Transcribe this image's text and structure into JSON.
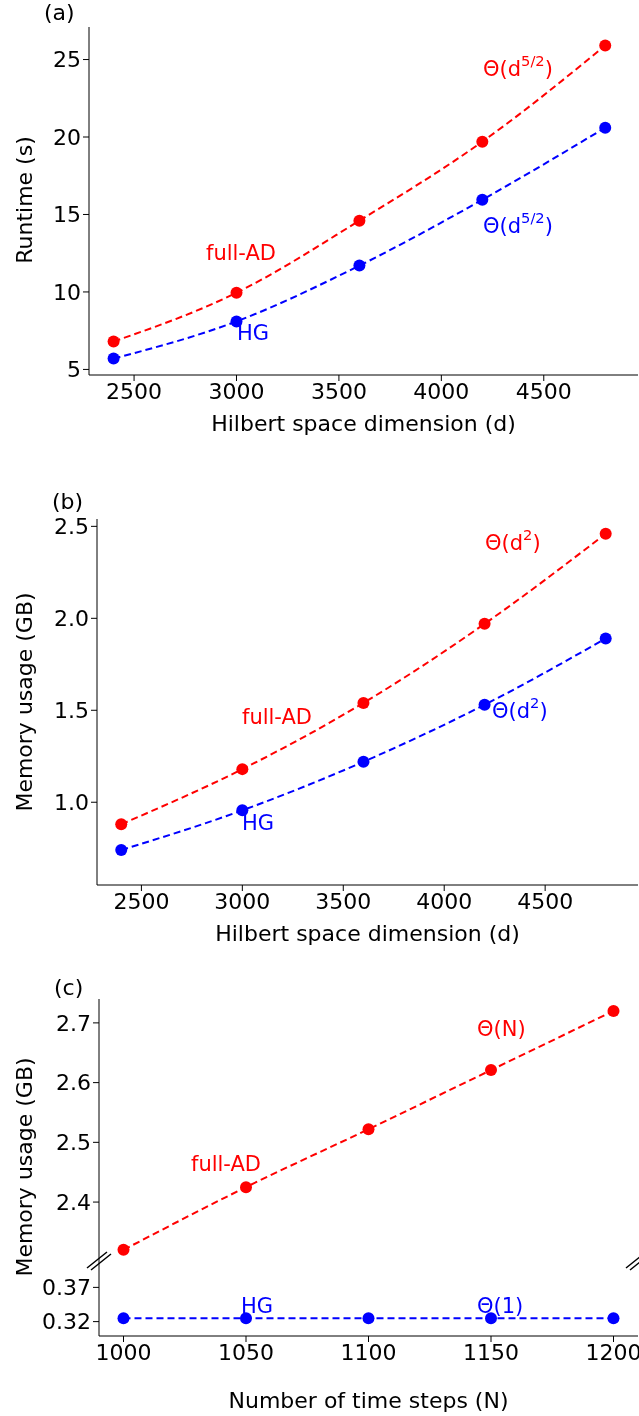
{
  "chart_data": [
    {
      "type": "line",
      "title": "(a)",
      "xlabel": "Hilbert space dimension (d)",
      "ylabel": "Runtime (s)",
      "x": [
        2400,
        3000,
        3600,
        4200,
        4800
      ],
      "xlim": [
        2280,
        4960
      ],
      "xticks": [
        2500,
        3000,
        3500,
        4000,
        4500
      ],
      "ylim": [
        4.64,
        27.1
      ],
      "yticks": [
        5,
        10,
        15,
        20,
        25
      ],
      "marker": "circle",
      "line_style": "dashed",
      "series": [
        {
          "name": "full-AD",
          "color": "#ff0000",
          "values": [
            6.8,
            9.95,
            14.6,
            19.7,
            25.9
          ]
        },
        {
          "name": "HG",
          "color": "#0000ff",
          "values": [
            5.7,
            8.1,
            11.7,
            15.95,
            20.6
          ]
        }
      ],
      "annotations": [
        "Θ(d$^{5/2}$)",
        "Θ(d$^{5/2}$)"
      ]
    },
    {
      "type": "line",
      "title": "(b)",
      "xlabel": "Hilbert space dimension (d)",
      "ylabel": "Memory usage (GB)",
      "x": [
        2400,
        3000,
        3600,
        4200,
        4800
      ],
      "xlim": [
        2280,
        4960
      ],
      "xticks": [
        2500,
        3000,
        3500,
        4000,
        4500
      ],
      "ylim": [
        0.55,
        2.54
      ],
      "yticks": [
        {
          "value": 1,
          "label": "1.0"
        },
        1.5,
        {
          "value": 2,
          "label": "2.0"
        },
        2.5
      ],
      "marker": "circle",
      "line_style": "dashed",
      "series": [
        {
          "name": "full-AD",
          "color": "#ff0000",
          "values": [
            0.88,
            1.18,
            1.54,
            1.97,
            2.46
          ]
        },
        {
          "name": "HG",
          "color": "#0000ff",
          "values": [
            0.74,
            0.956,
            1.22,
            1.53,
            1.89
          ]
        }
      ],
      "annotations": [
        "Θ(d$^{2}$)",
        "Θ(d$^{2}$)"
      ]
    },
    {
      "type": "line",
      "title": "(c)",
      "ylabel": "Memory usage (GB)",
      "x": [
        1000,
        1050,
        1100,
        1150,
        1200
      ],
      "xlim": [
        990,
        1210
      ],
      "ylim": [
        2.303,
        2.74
      ],
      "yticks": [
        2.4,
        2.5,
        2.6,
        2.7
      ],
      "tick_labels": "y",
      "marker": "circle",
      "line_style": "dashed",
      "series": [
        {
          "name": "full-AD",
          "color": "#ff0000",
          "values": [
            2.32,
            2.425,
            2.522,
            2.621,
            2.72
          ]
        }
      ],
      "annotations": [
        "Θ(N)"
      ]
    },
    {
      "type": "line",
      "xlabel": "Number of time steps (N)",
      "x": [
        1000,
        1050,
        1100,
        1150,
        1200
      ],
      "xlim": [
        990,
        1210
      ],
      "xticks": [
        1000,
        1050,
        1100,
        1150,
        1200
      ],
      "ylim": [
        0.299,
        0.41
      ],
      "yticks": [
        0.32,
        0.37
      ],
      "marker": "circle",
      "line_style": "dashed",
      "series": [
        {
          "name": "HG",
          "color": "#0000ff",
          "values": [
            0.325,
            0.325,
            0.325,
            0.325,
            0.325
          ]
        }
      ],
      "annotations": [
        "Θ(1)"
      ]
    }
  ]
}
